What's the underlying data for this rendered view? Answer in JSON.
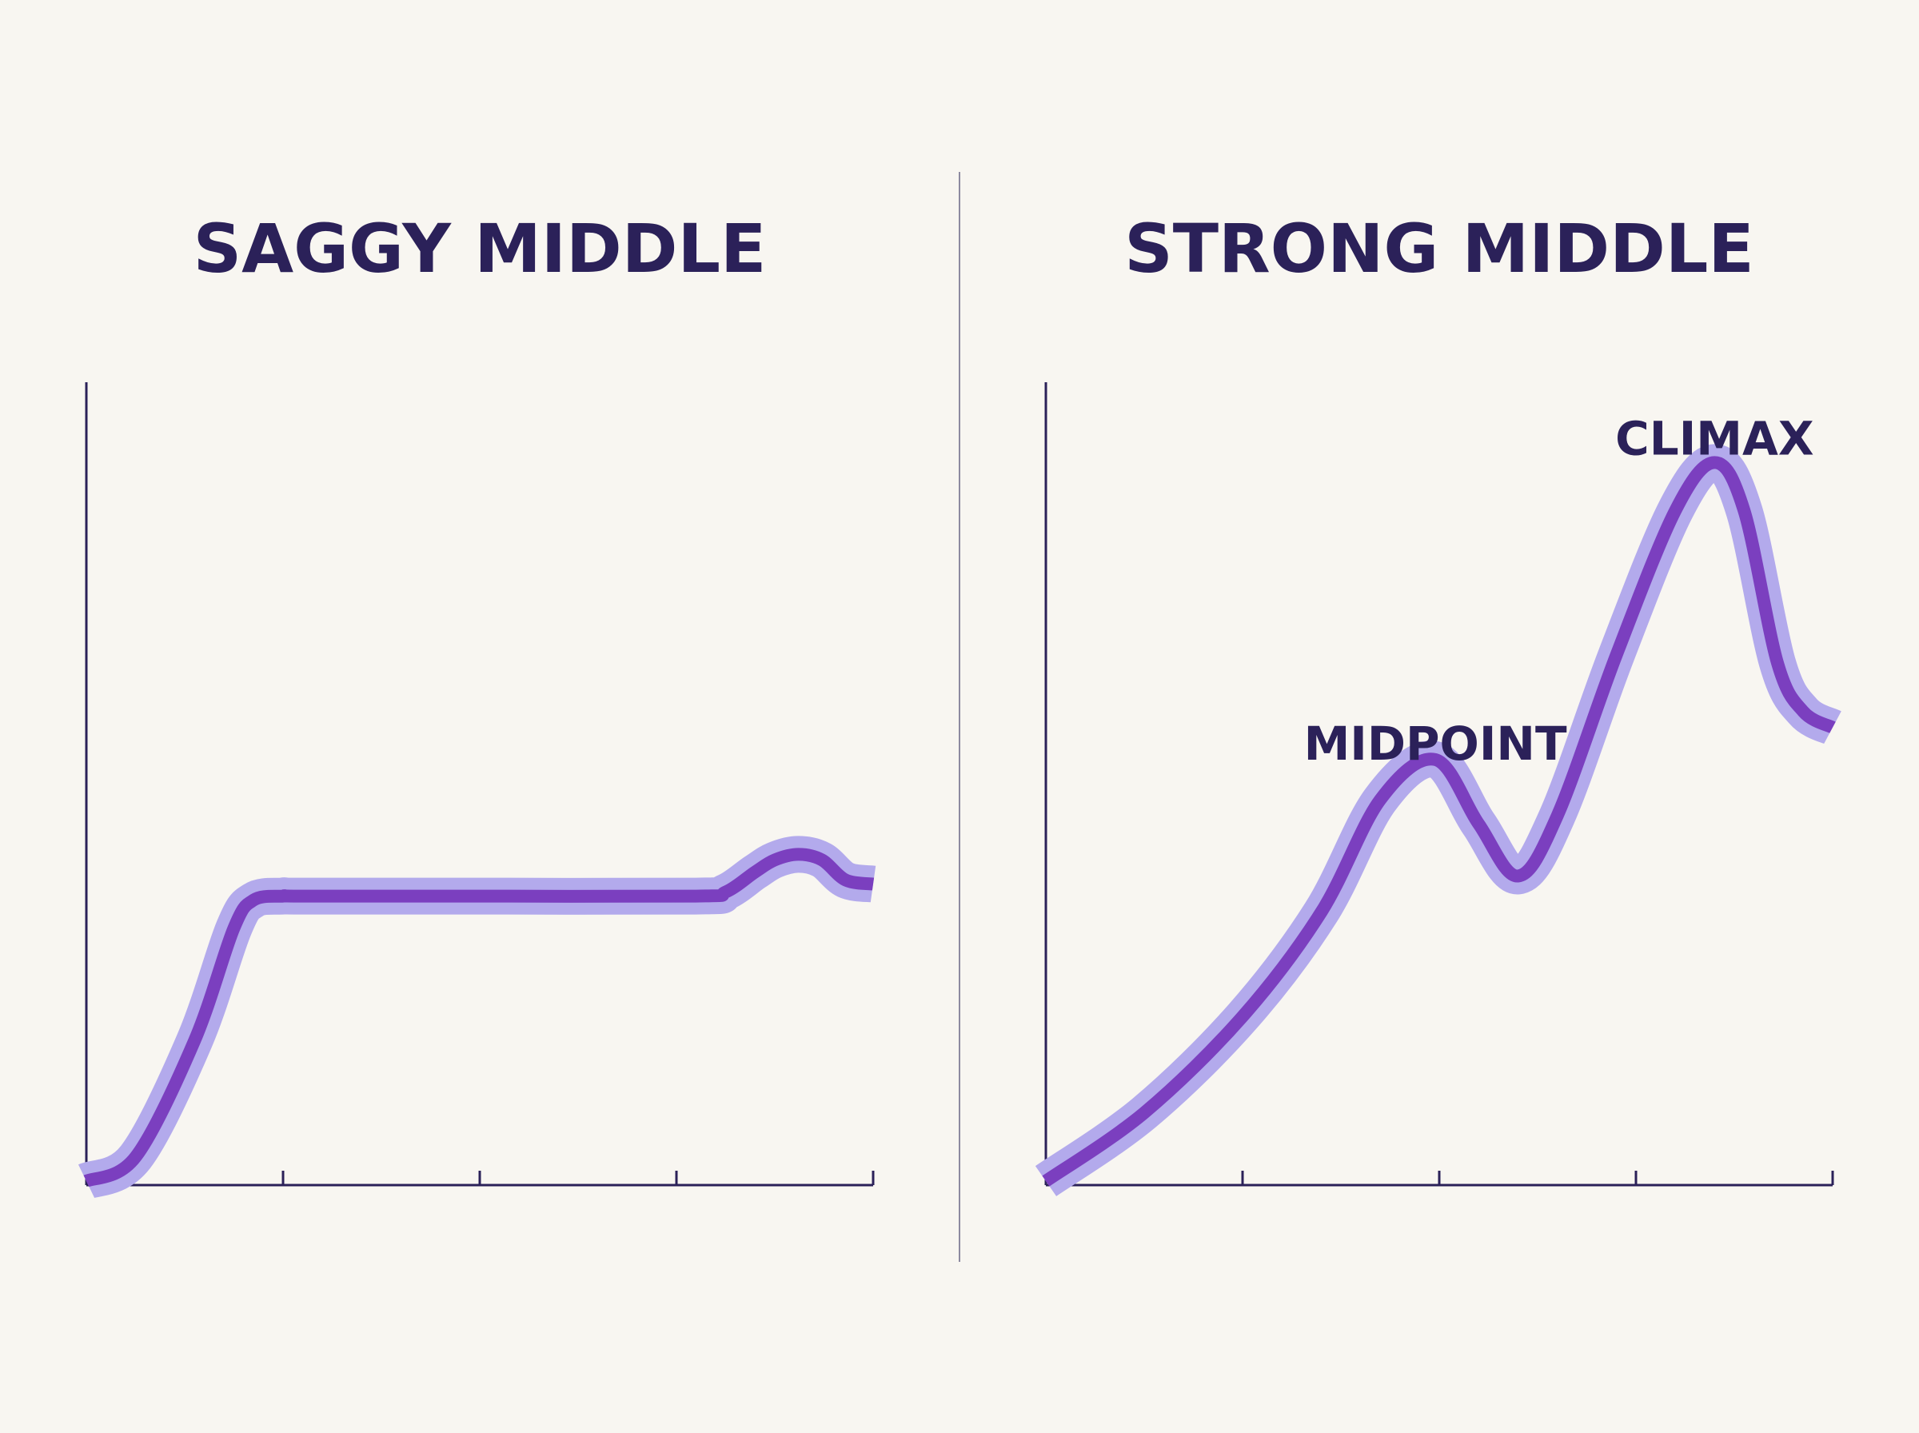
{
  "colors": {
    "background": "#f8f6f1",
    "text": "#2b2159",
    "axis": "#2b2159",
    "line": "#7b3fbf",
    "halo": "#b3aaec",
    "divider": "#8d8aa0"
  },
  "chart_data": [
    {
      "type": "line",
      "title": "SAGGY MIDDLE",
      "xlabel": "",
      "ylabel": "",
      "xlim": [
        0,
        4
      ],
      "ylim": [
        0,
        10
      ],
      "grid": false,
      "x_ticks": [
        1,
        2,
        3,
        4
      ],
      "annotations": [],
      "series": [
        {
          "x": [
            0,
            0.25,
            0.55,
            0.75,
            0.85,
            1.0,
            1.1,
            2.0,
            3.1,
            3.25,
            3.4,
            3.5,
            3.62,
            3.74,
            3.86,
            4.0
          ],
          "y": [
            0.05,
            0.35,
            1.8,
            3.2,
            3.55,
            3.6,
            3.6,
            3.6,
            3.6,
            3.65,
            3.9,
            4.05,
            4.12,
            4.05,
            3.8,
            3.75
          ]
        }
      ]
    },
    {
      "type": "line",
      "title": "STRONG MIDDLE",
      "xlabel": "",
      "ylabel": "",
      "xlim": [
        0,
        4
      ],
      "ylim": [
        0,
        10
      ],
      "grid": false,
      "x_ticks": [
        1,
        2,
        3,
        4
      ],
      "annotations": [
        {
          "text": "MIDPOINT",
          "x": 1.98,
          "y": 5.3
        },
        {
          "text": "CLIMAX",
          "x": 3.4,
          "y": 9.1
        }
      ],
      "series": [
        {
          "x": [
            0,
            0.5,
            1.0,
            1.4,
            1.7,
            1.98,
            2.2,
            2.4,
            2.6,
            2.9,
            3.2,
            3.4,
            3.55,
            3.72,
            3.85,
            4.0
          ],
          "y": [
            0.05,
            0.9,
            2.1,
            3.4,
            4.8,
            5.3,
            4.5,
            3.85,
            4.6,
            6.6,
            8.4,
            9.0,
            8.4,
            6.5,
            5.9,
            5.7
          ]
        }
      ]
    }
  ]
}
